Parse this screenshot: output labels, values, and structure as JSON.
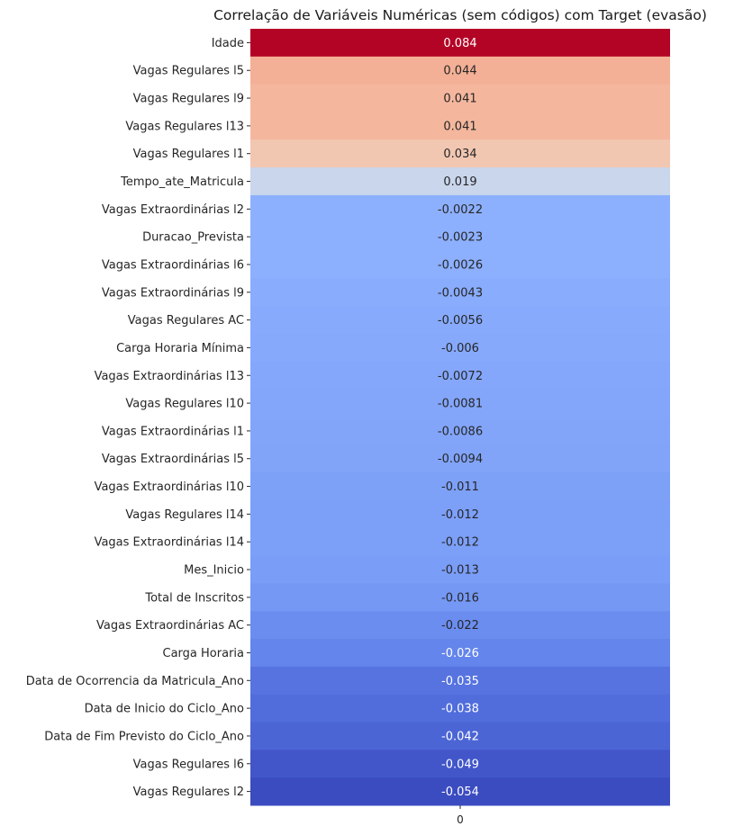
{
  "chart_data": {
    "type": "heatmap",
    "title": "Correlação de Variáveis Numéricas (sem códigos) com Target (evasão)",
    "columns": [
      "0"
    ],
    "colormap": "coolwarm",
    "value_range": [
      -0.054,
      0.084
    ],
    "colorbar": false,
    "rows": [
      {
        "label": "Idade",
        "value": 0.084,
        "text": "0.084"
      },
      {
        "label": "Vagas Regulares l5",
        "value": 0.044,
        "text": "0.044"
      },
      {
        "label": "Vagas Regulares l9",
        "value": 0.041,
        "text": "0.041"
      },
      {
        "label": "Vagas Regulares l13",
        "value": 0.041,
        "text": "0.041"
      },
      {
        "label": "Vagas Regulares l1",
        "value": 0.034,
        "text": "0.034"
      },
      {
        "label": "Tempo_ate_Matricula",
        "value": 0.019,
        "text": "0.019"
      },
      {
        "label": "Vagas Extraordinárias l2",
        "value": -0.0022,
        "text": "-0.0022"
      },
      {
        "label": "Duracao_Prevista",
        "value": -0.0023,
        "text": "-0.0023"
      },
      {
        "label": "Vagas Extraordinárias l6",
        "value": -0.0026,
        "text": "-0.0026"
      },
      {
        "label": "Vagas Extraordinárias l9",
        "value": -0.0043,
        "text": "-0.0043"
      },
      {
        "label": "Vagas Regulares AC",
        "value": -0.0056,
        "text": "-0.0056"
      },
      {
        "label": "Carga Horaria Mínima",
        "value": -0.006,
        "text": "-0.006"
      },
      {
        "label": "Vagas Extraordinárias l13",
        "value": -0.0072,
        "text": "-0.0072"
      },
      {
        "label": "Vagas Regulares l10",
        "value": -0.0081,
        "text": "-0.0081"
      },
      {
        "label": "Vagas Extraordinárias l1",
        "value": -0.0086,
        "text": "-0.0086"
      },
      {
        "label": "Vagas Extraordinárias l5",
        "value": -0.0094,
        "text": "-0.0094"
      },
      {
        "label": "Vagas Extraordinárias l10",
        "value": -0.011,
        "text": "-0.011"
      },
      {
        "label": "Vagas Regulares l14",
        "value": -0.012,
        "text": "-0.012"
      },
      {
        "label": "Vagas Extraordinárias l14",
        "value": -0.012,
        "text": "-0.012"
      },
      {
        "label": "Mes_Inicio",
        "value": -0.013,
        "text": "-0.013"
      },
      {
        "label": "Total de Inscritos",
        "value": -0.016,
        "text": "-0.016"
      },
      {
        "label": "Vagas Extraordinárias AC",
        "value": -0.022,
        "text": "-0.022"
      },
      {
        "label": "Carga Horaria",
        "value": -0.026,
        "text": "-0.026"
      },
      {
        "label": "Data de Ocorrencia da Matricula_Ano",
        "value": -0.035,
        "text": "-0.035"
      },
      {
        "label": "Data de Inicio do Ciclo_Ano",
        "value": -0.038,
        "text": "-0.038"
      },
      {
        "label": "Data de Fim Previsto do Ciclo_Ano",
        "value": -0.042,
        "text": "-0.042"
      },
      {
        "label": "Vagas Regulares l6",
        "value": -0.049,
        "text": "-0.049"
      },
      {
        "label": "Vagas Regulares l2",
        "value": -0.054,
        "text": "-0.054"
      }
    ]
  }
}
